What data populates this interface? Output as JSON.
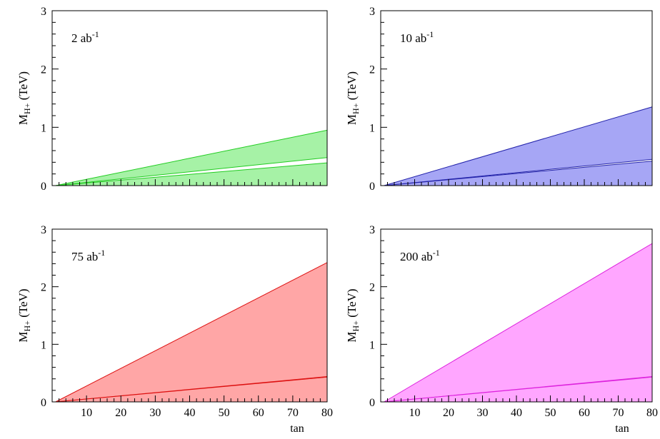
{
  "chart_data": [
    {
      "type": "area",
      "annotation": {
        "base": "2 ab",
        "sup": "-1"
      },
      "ylabel": {
        "main": "M",
        "sub": "H+",
        "rest": " (TeV)"
      },
      "xlabel": "",
      "xlim": [
        0,
        80
      ],
      "ylim": [
        0,
        3
      ],
      "yticks": [
        "0",
        "1",
        "2",
        "3"
      ],
      "xticks": [],
      "fill_color": "#a6f2a6",
      "line_color": "#22cc22",
      "series": [
        {
          "x": [
            1,
            80
          ],
          "upper": [
            0.0,
            0.95
          ],
          "lower": [
            0.0,
            0.48
          ]
        },
        {
          "x": [
            1,
            80
          ],
          "upper": [
            0.0,
            0.39
          ],
          "lower": [
            0.0,
            0.0
          ]
        }
      ]
    },
    {
      "type": "area",
      "annotation": {
        "base": "10 ab",
        "sup": "-1"
      },
      "ylabel": {
        "main": "M",
        "sub": "H+",
        "rest": " (TeV)"
      },
      "xlabel": "",
      "xlim": [
        0,
        80
      ],
      "ylim": [
        0,
        3
      ],
      "yticks": [
        "0",
        "1",
        "2",
        "3"
      ],
      "xticks": [],
      "fill_color": "#a6a6f5",
      "line_color": "#2222aa",
      "series": [
        {
          "x": [
            1,
            80
          ],
          "upper": [
            0.0,
            1.35
          ],
          "lower": [
            0.0,
            0.45
          ]
        },
        {
          "x": [
            1,
            80
          ],
          "upper": [
            0.0,
            0.42
          ],
          "lower": [
            0.0,
            0.0
          ]
        }
      ]
    },
    {
      "type": "area",
      "annotation": {
        "base": "75 ab",
        "sup": "-1"
      },
      "ylabel": {
        "main": "M",
        "sub": "H+",
        "rest": " (TeV)"
      },
      "xlabel": "tan",
      "xlim": [
        0,
        80
      ],
      "ylim": [
        0,
        3
      ],
      "yticks": [
        "0",
        "1",
        "2",
        "3"
      ],
      "xticks": [
        "10",
        "20",
        "30",
        "40",
        "50",
        "60",
        "70",
        "80"
      ],
      "fill_color": "#ffa6a6",
      "line_color": "#dd1111",
      "series": [
        {
          "x": [
            1,
            80
          ],
          "upper": [
            0.0,
            2.42
          ],
          "lower": [
            0.0,
            0.44
          ]
        },
        {
          "x": [
            1,
            80
          ],
          "upper": [
            0.0,
            0.43
          ],
          "lower": [
            0.0,
            0.0
          ]
        }
      ]
    },
    {
      "type": "area",
      "annotation": {
        "base": "200 ab",
        "sup": "-1"
      },
      "ylabel": {
        "main": "M",
        "sub": "H+",
        "rest": " (TeV)"
      },
      "xlabel": "tan",
      "xlim": [
        0,
        80
      ],
      "ylim": [
        0,
        3
      ],
      "yticks": [
        "0",
        "1",
        "2",
        "3"
      ],
      "xticks": [
        "10",
        "20",
        "30",
        "40",
        "50",
        "60",
        "70",
        "80"
      ],
      "fill_color": "#ffa6ff",
      "line_color": "#dd22dd",
      "series": [
        {
          "x": [
            1,
            80
          ],
          "upper": [
            0.0,
            2.75
          ],
          "lower": [
            0.0,
            0.44
          ]
        },
        {
          "x": [
            1,
            80
          ],
          "upper": [
            0.0,
            0.43
          ],
          "lower": [
            0.0,
            0.0
          ]
        }
      ]
    }
  ]
}
